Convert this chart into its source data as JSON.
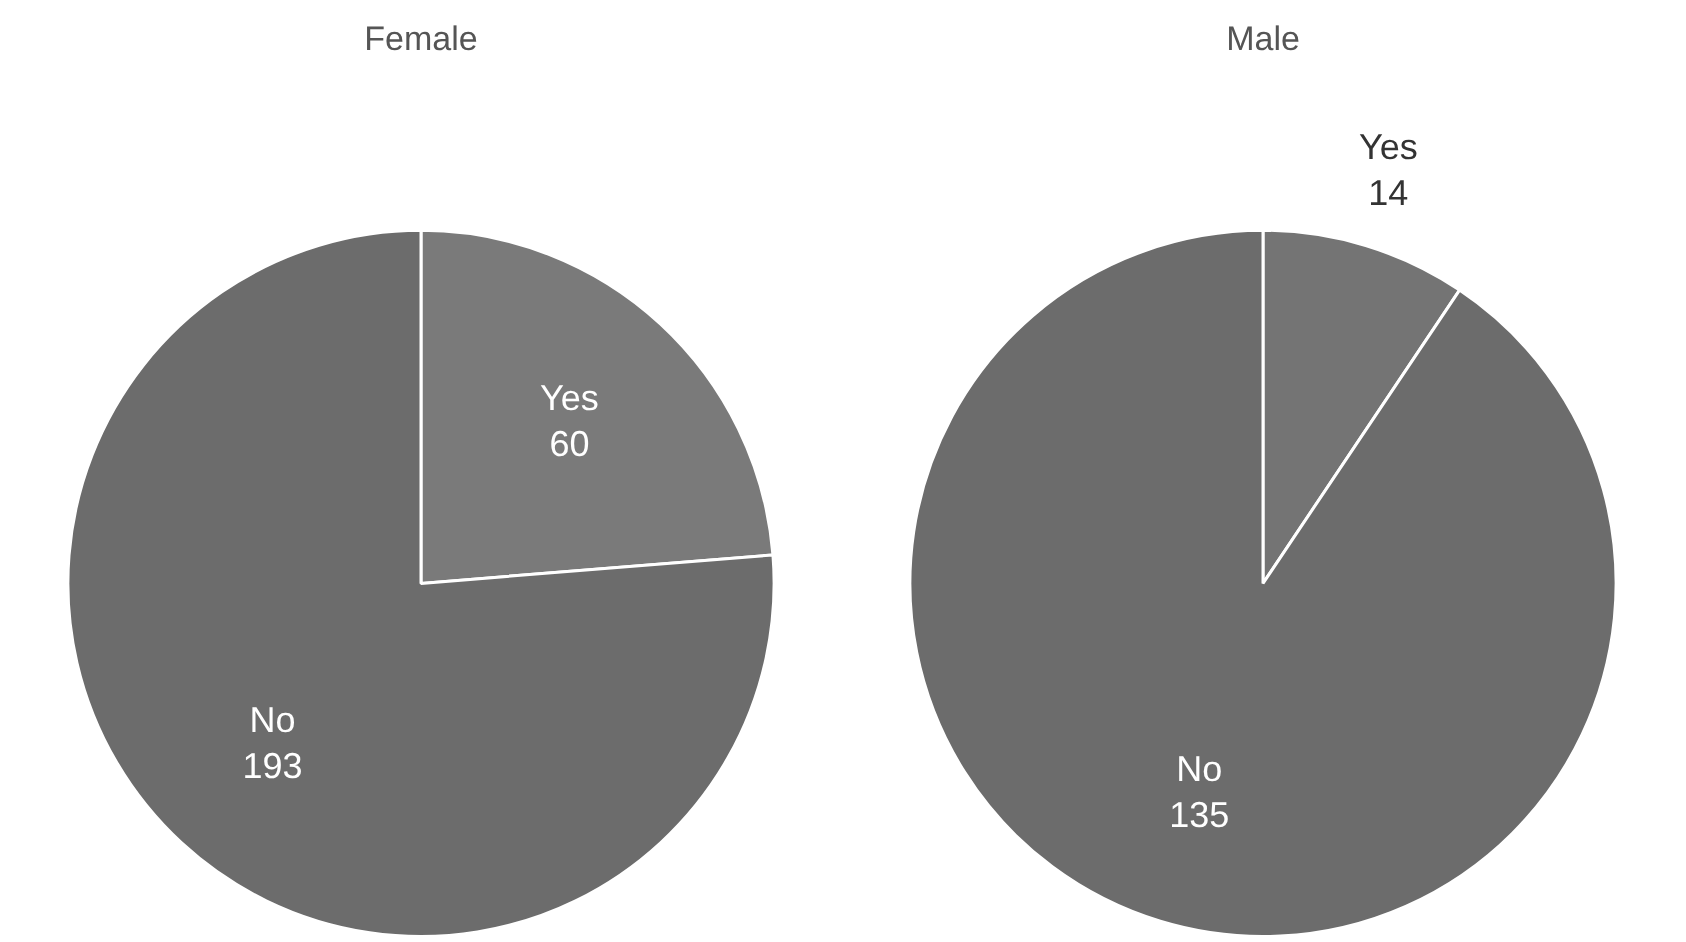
{
  "chart_data": [
    {
      "type": "pie",
      "title": "Female",
      "categories": [
        "Yes",
        "No"
      ],
      "values": [
        60,
        193
      ],
      "colors": [
        "#7a7a7a",
        "#6c6c6c"
      ],
      "data_labels": true,
      "legend": false
    },
    {
      "type": "pie",
      "title": "Male",
      "categories": [
        "Yes",
        "No"
      ],
      "values": [
        14,
        135
      ],
      "colors": [
        "#747474",
        "#6c6c6c"
      ],
      "data_labels": true,
      "legend": false
    }
  ]
}
